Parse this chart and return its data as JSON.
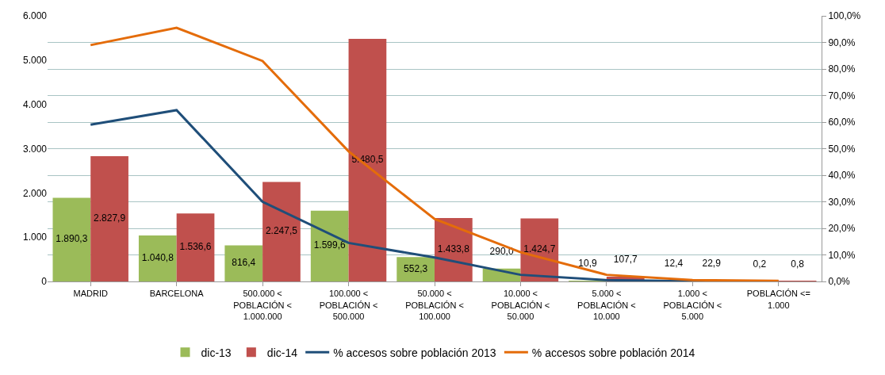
{
  "chart_data": {
    "type": "bar",
    "categories": [
      "MADRID",
      "BARCELONA",
      "500.000 <\nPOBLACIÓN <\n1.000.000",
      "100.000 <\nPOBLACIÓN <\n500.000",
      "50.000 <\nPOBLACIÓN <\n100.000",
      "10.000 <\nPOBLACIÓN <\n50.000",
      "5.000 <\nPOBLACIÓN <\n10.000",
      "1.000 <\nPOBLACIÓN <\n5.000",
      "POBLACIÓN <=\n1.000"
    ],
    "series": [
      {
        "name": "dic-13",
        "color": "#9bbb59",
        "values": [
          1890.3,
          1040.8,
          816.4,
          1599.6,
          552.3,
          290.0,
          10.9,
          12.4,
          0.2
        ],
        "value_labels": [
          "1.890,3",
          "1.040,8",
          "816,4",
          "1.599,6",
          "552,3",
          "290,0",
          "10,9",
          "12,4",
          "0,2"
        ]
      },
      {
        "name": "dic-14",
        "color": "#c0504d",
        "values": [
          2827.9,
          1536.6,
          2247.5,
          5480.5,
          1433.8,
          1424.7,
          107.7,
          22.9,
          0.8
        ],
        "value_labels": [
          "2.827,9",
          "1.536,6",
          "2.247,5",
          "5.480,5",
          "1.433,8",
          "1.424,7",
          "107,7",
          "22,9",
          "0,8"
        ]
      },
      {
        "name": "% accesos sobre población 2013",
        "type": "line",
        "axis": "y2",
        "color": "#1f4e79",
        "values": [
          59,
          64.5,
          30,
          14.5,
          9,
          2.5,
          0.5,
          0.1,
          0
        ]
      },
      {
        "name": "% accesos sobre población 2014",
        "type": "line",
        "axis": "y2",
        "color": "#e46c0a",
        "values": [
          89,
          95.5,
          83,
          49,
          23.5,
          11,
          2.5,
          0.5,
          0.2
        ]
      }
    ],
    "ylim": [
      0,
      6000
    ],
    "yticks": [
      {
        "value": 0,
        "label": "0"
      },
      {
        "value": 1000,
        "label": "1.000"
      },
      {
        "value": 2000,
        "label": "2.000"
      },
      {
        "value": 3000,
        "label": "3.000"
      },
      {
        "value": 4000,
        "label": "4.000"
      },
      {
        "value": 5000,
        "label": "5.000"
      },
      {
        "value": 6000,
        "label": "6.000"
      }
    ],
    "y2lim": [
      0,
      100
    ],
    "y2ticks": [
      {
        "value": 0,
        "label": "0,0%"
      },
      {
        "value": 10,
        "label": "10,0%"
      },
      {
        "value": 20,
        "label": "20,0%"
      },
      {
        "value": 30,
        "label": "30,0%"
      },
      {
        "value": 40,
        "label": "40,0%"
      },
      {
        "value": 50,
        "label": "50,0%"
      },
      {
        "value": 60,
        "label": "60,0%"
      },
      {
        "value": 70,
        "label": "70,0%"
      },
      {
        "value": 80,
        "label": "80,0%"
      },
      {
        "value": 90,
        "label": "90,0%"
      },
      {
        "value": 100,
        "label": "100,0%"
      }
    ],
    "grid": true,
    "legend": "bottom",
    "marker": "none",
    "line_style": "solid"
  }
}
